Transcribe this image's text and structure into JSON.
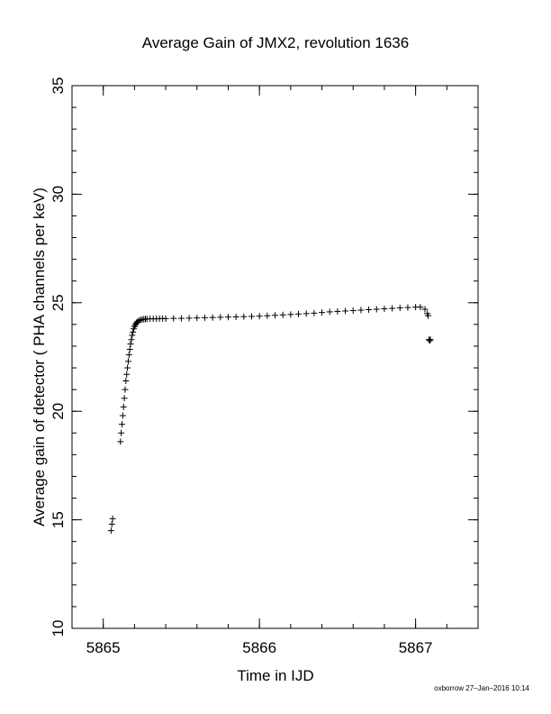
{
  "chart_data": {
    "type": "scatter",
    "title": "Average Gain of JMX2, revolution 1636",
    "xlabel": "Time in IJD",
    "ylabel": "Average gain of detector ( PHA channels per keV)",
    "xlim": [
      5864.8,
      5867.4
    ],
    "ylim": [
      10,
      35
    ],
    "xticks": [
      5865,
      5866,
      5867
    ],
    "xtick_labels": [
      "5865",
      "5866",
      "5867"
    ],
    "yticks": [
      10,
      15,
      20,
      25,
      30,
      35
    ],
    "ytick_labels": [
      "10",
      "15",
      "20",
      "25",
      "30",
      "35"
    ],
    "x_minor_step": 0.2,
    "y_minor_step": 1,
    "grid": false,
    "marker": "+",
    "series": [
      {
        "x": [
          5865.05,
          5865.055,
          5865.06,
          5865.11,
          5865.115,
          5865.12,
          5865.125,
          5865.13,
          5865.135,
          5865.14,
          5865.145,
          5865.15,
          5865.155,
          5865.16,
          5865.165,
          5865.17,
          5865.175,
          5865.18,
          5865.185,
          5865.19,
          5865.195,
          5865.2,
          5865.205,
          5865.21,
          5865.215,
          5865.22,
          5865.23,
          5865.24,
          5865.25,
          5865.26,
          5865.27,
          5865.28,
          5865.3,
          5865.32,
          5865.34,
          5865.36,
          5865.38,
          5865.4,
          5865.45,
          5865.5,
          5865.55,
          5865.6,
          5865.65,
          5865.7,
          5865.75,
          5865.8,
          5865.85,
          5865.9,
          5865.95,
          5866.0,
          5866.05,
          5866.1,
          5866.15,
          5866.2,
          5866.25,
          5866.3,
          5866.35,
          5866.4,
          5866.45,
          5866.5,
          5866.55,
          5866.6,
          5866.65,
          5866.7,
          5866.75,
          5866.8,
          5866.85,
          5866.9,
          5866.95,
          5867.0,
          5867.03,
          5867.06,
          5867.075,
          5867.08,
          5867.085,
          5867.09,
          5867.095
        ],
        "y": [
          14.5,
          14.8,
          15.05,
          18.6,
          19.0,
          19.4,
          19.8,
          20.2,
          20.6,
          21.0,
          21.4,
          21.7,
          22.0,
          22.3,
          22.6,
          22.85,
          23.1,
          23.3,
          23.5,
          23.65,
          23.8,
          23.9,
          23.98,
          24.04,
          24.09,
          24.13,
          24.18,
          24.21,
          24.23,
          24.24,
          24.25,
          24.25,
          24.26,
          24.26,
          24.26,
          24.27,
          24.27,
          24.27,
          24.28,
          24.28,
          24.29,
          24.3,
          24.31,
          24.32,
          24.33,
          24.34,
          24.35,
          24.36,
          24.37,
          24.38,
          24.4,
          24.42,
          24.44,
          24.46,
          24.48,
          24.5,
          24.52,
          24.55,
          24.58,
          24.6,
          24.62,
          24.64,
          24.66,
          24.68,
          24.7,
          24.72,
          24.74,
          24.76,
          24.78,
          24.8,
          24.8,
          24.7,
          24.5,
          24.4,
          23.3,
          23.25,
          23.3
        ]
      }
    ]
  },
  "footer": {
    "stamp": "oxborrow 27–Jan–2016 10:14"
  }
}
